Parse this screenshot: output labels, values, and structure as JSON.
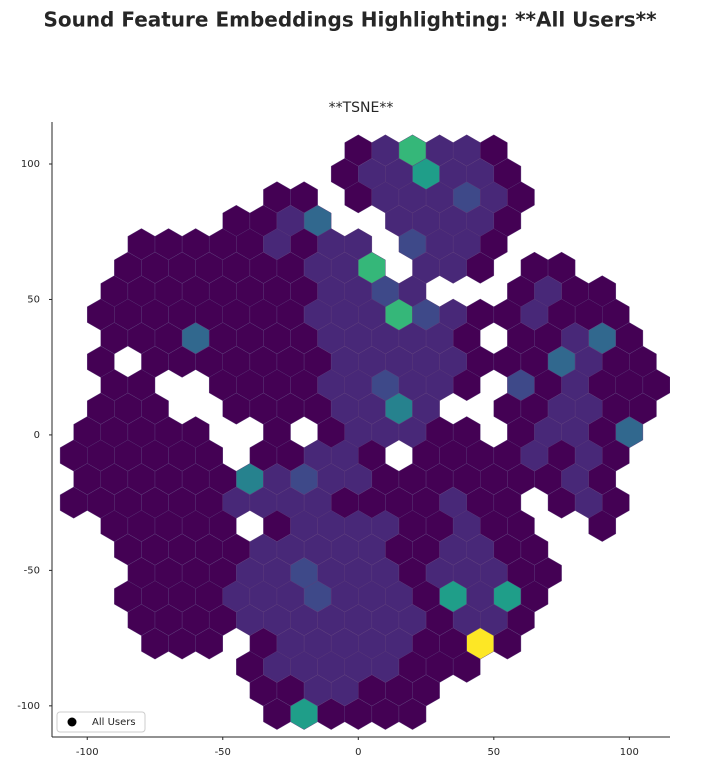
{
  "chart_data": {
    "type": "hexbin",
    "title": "Sound Feature Embeddings Highlighting: **All Users**",
    "axes_title": "**TSNE**",
    "xlim": [
      -113,
      115
    ],
    "ylim": [
      -111.5,
      115.5
    ],
    "xticks": [
      -100,
      -50,
      0,
      50,
      100
    ],
    "yticks": [
      -100,
      -50,
      0,
      50,
      100
    ],
    "grid": false,
    "colormap": [
      "#440154",
      "#482878",
      "#3e4989",
      "#31688e",
      "#26828e",
      "#1f9e89",
      "#35b779",
      "#6ece58",
      "#b5de2b",
      "#fde725"
    ],
    "legend": "lower left",
    "series": [
      {
        "name": "All Users",
        "color": "#000000",
        "rows": [
          {
            "y": 105,
            "x": [
              0,
              10,
              20,
              30,
              40,
              50
            ],
            "values": [
              1,
              2,
              7,
              2,
              2,
              1
            ]
          },
          {
            "y": 96.3,
            "x": [
              -5,
              5,
              15,
              25,
              35,
              45,
              55
            ],
            "values": [
              1,
              2,
              2,
              6,
              2,
              2,
              1
            ]
          },
          {
            "y": 87.7,
            "x": [
              -30,
              -20,
              0,
              10,
              20,
              30,
              40,
              50,
              60
            ],
            "values": [
              1,
              1,
              1,
              2,
              2,
              2,
              3,
              2,
              1
            ]
          },
          {
            "y": 79,
            "x": [
              -45,
              -35,
              -25,
              -15,
              15,
              25,
              35,
              45,
              55
            ],
            "values": [
              1,
              1,
              2,
              4,
              2,
              2,
              2,
              2,
              1
            ]
          },
          {
            "y": 70.4,
            "x": [
              -80,
              -70,
              -60,
              -50,
              -40,
              -30,
              -20,
              -10,
              0,
              20,
              30,
              40,
              50
            ],
            "values": [
              1,
              1,
              1,
              1,
              1,
              2,
              1,
              2,
              2,
              3,
              2,
              2,
              1
            ]
          },
          {
            "y": 61.7,
            "x": [
              -85,
              -75,
              -65,
              -55,
              -45,
              -35,
              -25,
              -15,
              -5,
              5,
              25,
              35,
              45,
              65,
              75
            ],
            "values": [
              1,
              1,
              1,
              1,
              1,
              1,
              1,
              2,
              2,
              7,
              2,
              2,
              1,
              1,
              1
            ]
          },
          {
            "y": 53,
            "x": [
              -90,
              -80,
              -70,
              -60,
              -50,
              -40,
              -30,
              -20,
              -10,
              0,
              10,
              20,
              60,
              70,
              80,
              90
            ],
            "values": [
              1,
              1,
              1,
              1,
              1,
              1,
              1,
              1,
              2,
              2,
              3,
              2,
              1,
              2,
              1,
              1
            ]
          },
          {
            "y": 44.4,
            "x": [
              -95,
              -85,
              -75,
              -65,
              -55,
              -45,
              -35,
              -25,
              -15,
              -5,
              5,
              15,
              25,
              35,
              45,
              55,
              65,
              75,
              85,
              95
            ],
            "values": [
              1,
              1,
              1,
              1,
              1,
              1,
              1,
              1,
              2,
              2,
              2,
              7,
              3,
              2,
              1,
              1,
              2,
              1,
              1,
              1
            ]
          },
          {
            "y": 35.7,
            "x": [
              -90,
              -80,
              -70,
              -60,
              -50,
              -40,
              -30,
              -20,
              -10,
              0,
              10,
              20,
              30,
              40,
              60,
              70,
              80,
              90,
              100
            ],
            "values": [
              1,
              1,
              1,
              4,
              1,
              1,
              1,
              1,
              2,
              2,
              2,
              2,
              2,
              1,
              1,
              1,
              2,
              4,
              1
            ]
          },
          {
            "y": 27,
            "x": [
              -95,
              -75,
              -65,
              -55,
              -45,
              -35,
              -25,
              -15,
              -5,
              5,
              15,
              25,
              35,
              45,
              55,
              65,
              75,
              85,
              95,
              105
            ],
            "values": [
              1,
              1,
              1,
              1,
              1,
              1,
              1,
              1,
              2,
              2,
              2,
              2,
              2,
              1,
              1,
              1,
              4,
              2,
              1,
              1
            ]
          },
          {
            "y": 18.4,
            "x": [
              -90,
              -80,
              -50,
              -40,
              -30,
              -20,
              -10,
              0,
              10,
              20,
              30,
              40,
              60,
              70,
              80,
              90,
              100,
              110
            ],
            "values": [
              1,
              1,
              1,
              1,
              1,
              1,
              2,
              2,
              3,
              2,
              2,
              1,
              3,
              1,
              2,
              1,
              1,
              1
            ]
          },
          {
            "y": 9.7,
            "x": [
              -95,
              -85,
              -75,
              -45,
              -35,
              -25,
              -15,
              -5,
              5,
              15,
              25,
              55,
              65,
              75,
              85,
              95,
              105
            ],
            "values": [
              1,
              1,
              1,
              1,
              1,
              1,
              1,
              2,
              2,
              5,
              2,
              1,
              1,
              2,
              2,
              1,
              1
            ]
          },
          {
            "y": 1,
            "x": [
              -100,
              -90,
              -80,
              -70,
              -60,
              -30,
              -10,
              0,
              10,
              20,
              30,
              40,
              60,
              70,
              80,
              90,
              100
            ],
            "values": [
              1,
              1,
              1,
              1,
              1,
              1,
              1,
              2,
              2,
              2,
              1,
              1,
              1,
              2,
              2,
              1,
              4
            ]
          },
          {
            "y": -7.6,
            "x": [
              -105,
              -95,
              -85,
              -75,
              -65,
              -55,
              -35,
              -25,
              -15,
              -5,
              5,
              25,
              35,
              45,
              55,
              65,
              75,
              85,
              95
            ],
            "values": [
              1,
              1,
              1,
              1,
              1,
              1,
              1,
              1,
              2,
              2,
              1,
              1,
              1,
              1,
              1,
              2,
              1,
              2,
              1
            ]
          },
          {
            "y": -16.3,
            "x": [
              -100,
              -90,
              -80,
              -70,
              -60,
              -50,
              -40,
              -30,
              -20,
              -10,
              0,
              10,
              20,
              30,
              40,
              50,
              60,
              70,
              80,
              90
            ],
            "values": [
              1,
              1,
              1,
              1,
              1,
              1,
              5,
              2,
              3,
              2,
              2,
              1,
              1,
              1,
              1,
              1,
              1,
              1,
              2,
              1
            ]
          },
          {
            "y": -25,
            "x": [
              -105,
              -95,
              -85,
              -75,
              -65,
              -55,
              -45,
              -35,
              -25,
              -15,
              -5,
              5,
              15,
              25,
              35,
              45,
              55,
              75,
              85,
              95
            ],
            "values": [
              1,
              1,
              1,
              1,
              1,
              1,
              2,
              2,
              2,
              2,
              1,
              1,
              1,
              1,
              2,
              1,
              1,
              1,
              2,
              1
            ]
          },
          {
            "y": -33.6,
            "x": [
              -90,
              -80,
              -70,
              -60,
              -50,
              -30,
              -20,
              -10,
              0,
              10,
              20,
              30,
              40,
              50,
              60,
              90
            ],
            "values": [
              1,
              1,
              1,
              1,
              1,
              1,
              2,
              2,
              2,
              2,
              1,
              1,
              2,
              1,
              1,
              1
            ]
          },
          {
            "y": -42.3,
            "x": [
              -85,
              -75,
              -65,
              -55,
              -45,
              -35,
              -25,
              -15,
              -5,
              5,
              15,
              25,
              35,
              45,
              55,
              65
            ],
            "values": [
              1,
              1,
              1,
              1,
              1,
              2,
              2,
              2,
              2,
              2,
              1,
              1,
              2,
              2,
              1,
              1
            ]
          },
          {
            "y": -51,
            "x": [
              -80,
              -70,
              -60,
              -50,
              -40,
              -30,
              -20,
              -10,
              0,
              10,
              20,
              30,
              40,
              50,
              60,
              70
            ],
            "values": [
              1,
              1,
              1,
              1,
              2,
              2,
              3,
              2,
              2,
              2,
              1,
              2,
              2,
              2,
              1,
              1
            ]
          },
          {
            "y": -59.6,
            "x": [
              -85,
              -75,
              -65,
              -55,
              -45,
              -35,
              -25,
              -15,
              -5,
              5,
              15,
              25,
              35,
              45,
              55,
              65
            ],
            "values": [
              1,
              1,
              1,
              1,
              2,
              2,
              2,
              3,
              2,
              2,
              2,
              1,
              6,
              2,
              6,
              1
            ]
          },
          {
            "y": -68.3,
            "x": [
              -80,
              -70,
              -60,
              -50,
              -40,
              -30,
              -20,
              -10,
              0,
              10,
              20,
              30,
              40,
              50,
              60
            ],
            "values": [
              1,
              1,
              1,
              1,
              2,
              2,
              2,
              2,
              2,
              2,
              2,
              1,
              2,
              2,
              1
            ]
          },
          {
            "y": -77,
            "x": [
              -75,
              -65,
              -55,
              -35,
              -25,
              -15,
              -5,
              5,
              15,
              25,
              35,
              45,
              55
            ],
            "values": [
              1,
              1,
              1,
              1,
              2,
              2,
              2,
              2,
              2,
              1,
              1,
              10,
              1
            ]
          },
          {
            "y": -85.6,
            "x": [
              -40,
              -30,
              -20,
              -10,
              0,
              10,
              20,
              30,
              40
            ],
            "values": [
              1,
              2,
              2,
              2,
              2,
              2,
              1,
              1,
              1
            ]
          },
          {
            "y": -94.3,
            "x": [
              -35,
              -25,
              -15,
              -5,
              5,
              15,
              25
            ],
            "values": [
              1,
              1,
              2,
              2,
              1,
              1,
              1
            ]
          },
          {
            "y": -103,
            "x": [
              -30,
              -20,
              -10,
              0,
              10,
              20
            ],
            "values": [
              1,
              6,
              1,
              1,
              1,
              1
            ]
          }
        ]
      }
    ]
  }
}
